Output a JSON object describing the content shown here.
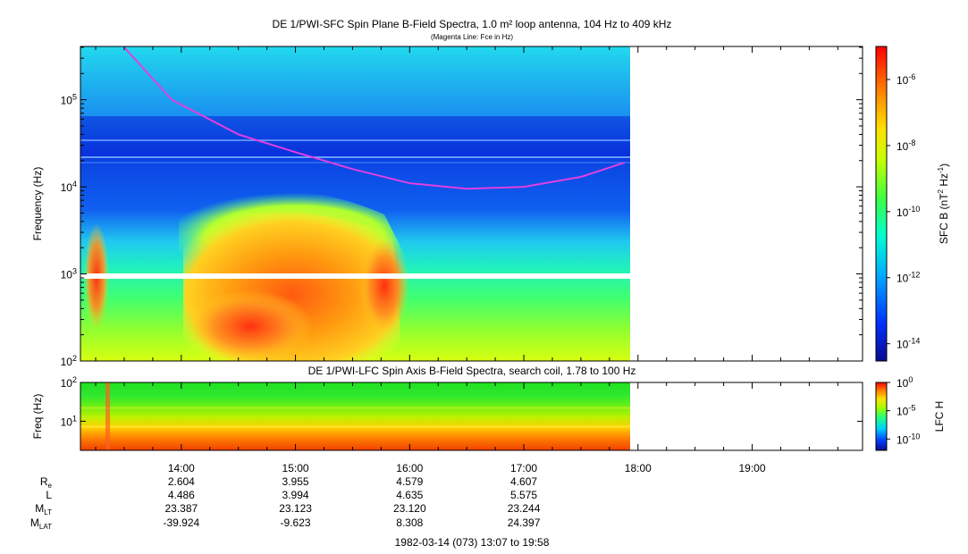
{
  "chart_data": [
    {
      "type": "heatmap",
      "title": "DE 1/PWI-SFC  Spin Plane B-Field Spectra, 1.0 m² loop antenna, 104 Hz to 409 kHz",
      "subtitle": "(Magenta Line: Fce in Hz)",
      "ylabel": "Frequency (Hz)",
      "yscale": "log",
      "ylim": [
        100,
        409000
      ],
      "y_ticks": [
        {
          "v": 100,
          "label": "10",
          "exp": "2"
        },
        {
          "v": 1000,
          "label": "10",
          "exp": "3"
        },
        {
          "v": 10000,
          "label": "10",
          "exp": "4"
        },
        {
          "v": 100000,
          "label": "10",
          "exp": "5"
        }
      ],
      "xlim": [
        "13:07",
        "19:58"
      ],
      "x_ticks": [
        "14:00",
        "15:00",
        "16:00",
        "17:00",
        "18:00",
        "19:00"
      ],
      "data_end": "17:53",
      "colorbar": {
        "label": "SFC B (nT",
        "label_sup1": "2",
        "label_mid": " Hz",
        "label_sup2": "-1",
        "label_end": ")",
        "scale": "log",
        "range": [
          3e-15,
          1e-05
        ],
        "ticks": [
          {
            "label": "10",
            "exp": "-6",
            "v": 1e-06
          },
          {
            "label": "10",
            "exp": "-8",
            "v": 1e-08
          },
          {
            "label": "10",
            "exp": "-10",
            "v": 1e-10
          },
          {
            "label": "10",
            "exp": "-12",
            "v": 1e-12
          },
          {
            "label": "10",
            "exp": "-14",
            "v": 1e-14
          }
        ]
      },
      "fce_line": {
        "name": "Fce",
        "color": "#e040e0",
        "points": [
          [
            "13:30",
            400000
          ],
          [
            "13:55",
            100000
          ],
          [
            "14:30",
            40000
          ],
          [
            "15:00",
            25000
          ],
          [
            "15:30",
            16000
          ],
          [
            "16:00",
            11000
          ],
          [
            "16:30",
            9500
          ],
          [
            "17:00",
            10000
          ],
          [
            "17:30",
            13000
          ],
          [
            "17:53",
            19000
          ]
        ]
      }
    },
    {
      "type": "heatmap",
      "title": "DE 1/PWI-LFC  Spin Axis B-Field Spectra, search coil, 1.78 to 100 Hz",
      "ylabel": "Freq (Hz)",
      "yscale": "log",
      "ylim": [
        1.78,
        100
      ],
      "y_ticks": [
        {
          "v": 10,
          "label": "10",
          "exp": "1"
        },
        {
          "v": 100,
          "label": "10",
          "exp": "2"
        }
      ],
      "xlim": [
        "13:07",
        "19:58"
      ],
      "data_end": "17:53",
      "colorbar": {
        "label": "LFC H",
        "scale": "log",
        "range": [
          1e-12,
          1
        ],
        "ticks": [
          {
            "label": "10",
            "exp": "0",
            "v": 1
          },
          {
            "label": "10",
            "exp": "-5",
            "v": 1e-05
          },
          {
            "label": "10",
            "exp": "-10",
            "v": 1e-10
          }
        ]
      }
    }
  ],
  "ephemeris": {
    "rows": [
      {
        "label": "R",
        "sub": "e",
        "values": [
          "2.604",
          "3.955",
          "4.579",
          "4.607"
        ]
      },
      {
        "label": "L",
        "sub": "",
        "values": [
          "4.486",
          "3.994",
          "4.635",
          "5.575"
        ]
      },
      {
        "label": "M",
        "sub": "LT",
        "values": [
          "23.387",
          "23.123",
          "23.120",
          "23.244"
        ]
      },
      {
        "label": "M",
        "sub": "LAT",
        "values": [
          "-39.924",
          "-9.623",
          "8.308",
          "24.397"
        ]
      }
    ],
    "footer": "1982-03-14 (073) 13:07 to 19:58"
  }
}
